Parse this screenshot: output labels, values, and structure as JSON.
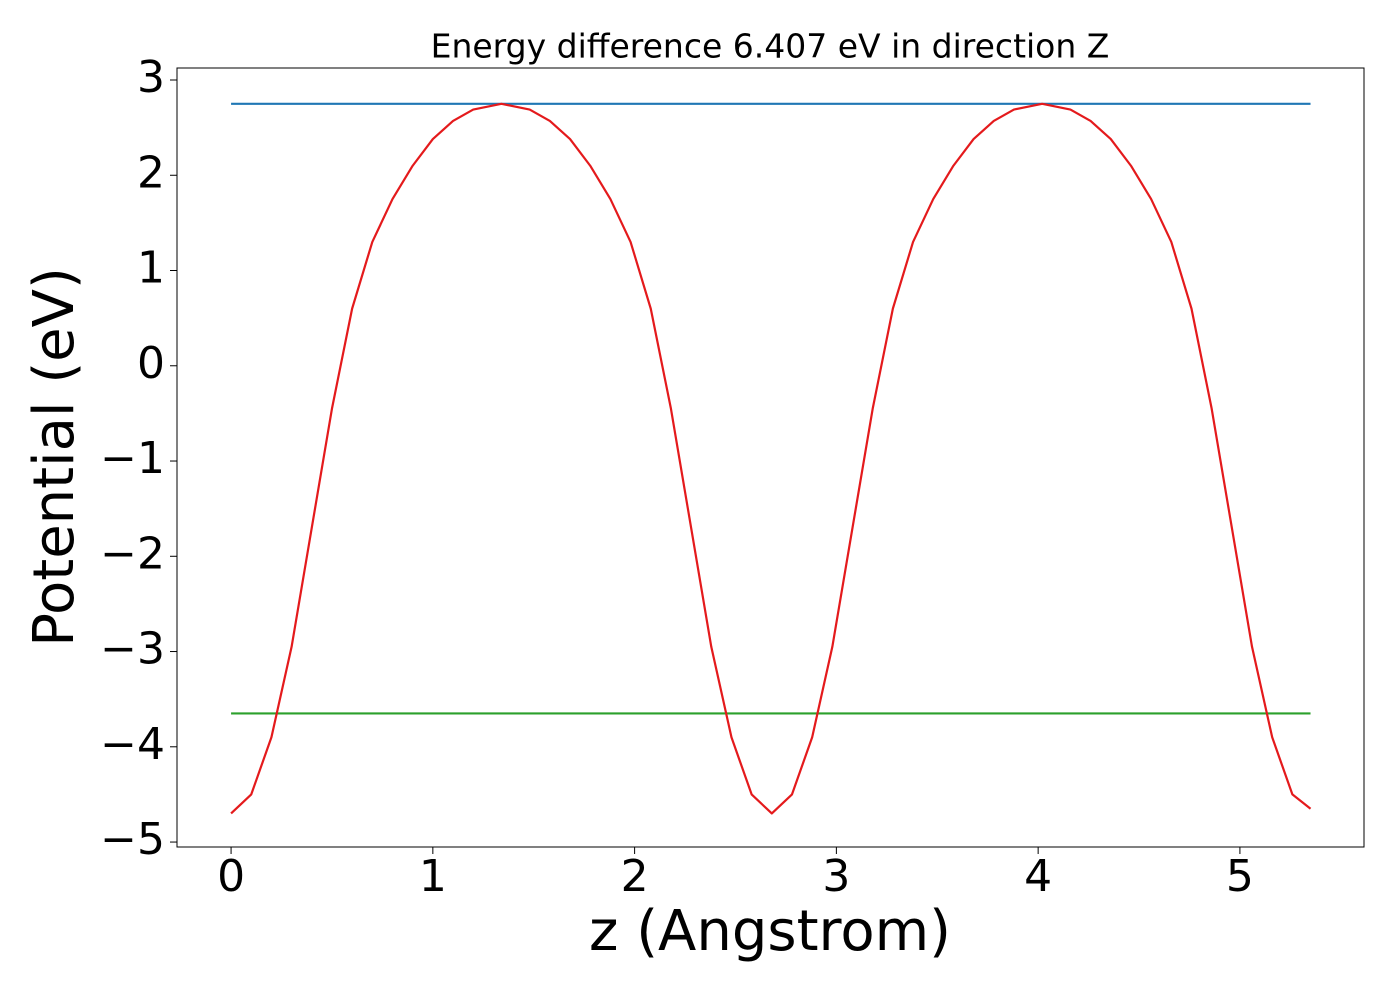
{
  "chart_data": {
    "type": "line",
    "title": "Energy difference 6.407 eV in direction Z",
    "xlabel": "z (Angstrom)",
    "ylabel": "Potential (eV)",
    "xlim": [
      -0.268,
      5.615
    ],
    "ylim": [
      -5.052,
      3.126
    ],
    "xticks": [
      0,
      1,
      2,
      3,
      4,
      5
    ],
    "yticks": [
      {
        "value": -5,
        "label": "−5"
      },
      {
        "value": -4,
        "label": "−4"
      },
      {
        "value": -3,
        "label": "−3"
      },
      {
        "value": -2,
        "label": "−2"
      },
      {
        "value": -1,
        "label": "−1"
      },
      0,
      1,
      2,
      3
    ],
    "grid": false,
    "series": [
      {
        "color": "#1f77b4",
        "x": [
          0,
          5.35
        ],
        "values": [
          2.75,
          2.75
        ]
      },
      {
        "color": "#2ca02c",
        "x": [
          0,
          5.35
        ],
        "values": [
          -3.65,
          -3.65
        ]
      },
      {
        "color": "#e41a1c",
        "x": [
          0,
          0.1,
          0.2,
          0.3,
          0.4,
          0.5,
          0.6,
          0.7,
          0.8,
          0.9,
          1.0,
          1.1,
          1.2,
          1.34,
          1.48,
          1.58,
          1.68,
          1.78,
          1.88,
          1.98,
          2.08,
          2.18,
          2.28,
          2.38,
          2.48,
          2.58,
          2.68,
          2.78,
          2.88,
          2.98,
          3.08,
          3.18,
          3.28,
          3.38,
          3.48,
          3.58,
          3.68,
          3.78,
          3.88,
          4.02,
          4.16,
          4.26,
          4.36,
          4.46,
          4.56,
          4.66,
          4.76,
          4.86,
          4.96,
          5.06,
          5.16,
          5.26,
          5.35
        ],
        "values": [
          -4.7,
          -4.5,
          -3.9,
          -2.95,
          -1.7,
          -0.45,
          0.6,
          1.3,
          1.75,
          2.1,
          2.38,
          2.57,
          2.69,
          2.75,
          2.69,
          2.57,
          2.38,
          2.1,
          1.75,
          1.3,
          0.6,
          -0.45,
          -1.7,
          -2.95,
          -3.9,
          -4.5,
          -4.7,
          -4.5,
          -3.9,
          -2.95,
          -1.7,
          -0.45,
          0.6,
          1.3,
          1.75,
          2.1,
          2.38,
          2.57,
          2.69,
          2.75,
          2.69,
          2.57,
          2.38,
          2.1,
          1.75,
          1.3,
          0.6,
          -0.45,
          -1.7,
          -2.95,
          -3.9,
          -4.5,
          -4.65
        ]
      }
    ]
  }
}
